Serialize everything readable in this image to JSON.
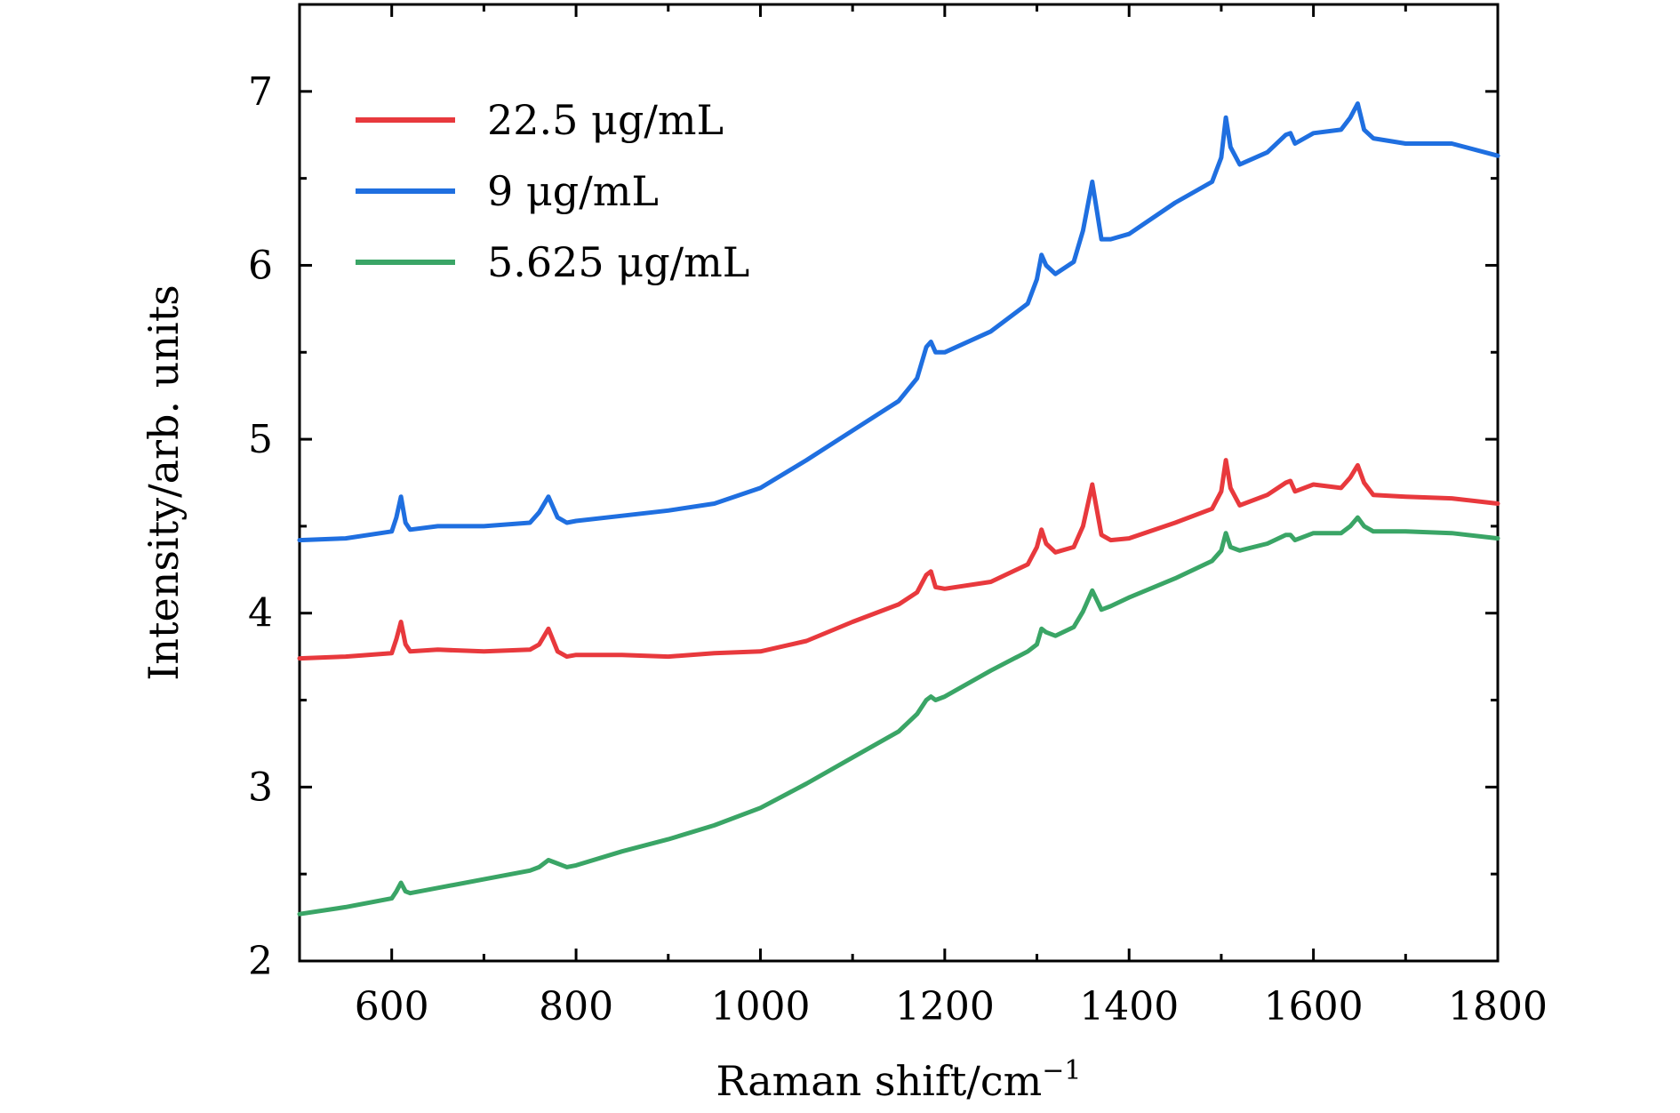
{
  "chart_data": {
    "type": "line",
    "xlabel": "Raman shift/cm",
    "xlabel_sup": "−1",
    "ylabel": "Intensity/arb. units",
    "xlim": [
      500,
      1800
    ],
    "ylim": [
      2,
      7.5
    ],
    "x_ticks": [
      600,
      800,
      1000,
      1200,
      1400,
      1600,
      1800
    ],
    "y_ticks": [
      2,
      3,
      4,
      5,
      6,
      7
    ],
    "grid": false,
    "legend": "top-left",
    "series": [
      {
        "name": "22.5 μg/mL",
        "color": "#e8393d",
        "x": [
          500,
          550,
          600,
          605,
          610,
          615,
          620,
          650,
          700,
          750,
          760,
          770,
          780,
          790,
          800,
          850,
          900,
          950,
          1000,
          1050,
          1100,
          1150,
          1170,
          1180,
          1185,
          1190,
          1200,
          1250,
          1290,
          1300,
          1305,
          1310,
          1320,
          1340,
          1350,
          1360,
          1370,
          1380,
          1400,
          1450,
          1490,
          1500,
          1505,
          1510,
          1520,
          1550,
          1570,
          1575,
          1580,
          1600,
          1630,
          1640,
          1648,
          1655,
          1665,
          1700,
          1750,
          1800
        ],
        "y": [
          3.74,
          3.75,
          3.77,
          3.85,
          3.95,
          3.82,
          3.78,
          3.79,
          3.78,
          3.79,
          3.82,
          3.91,
          3.78,
          3.75,
          3.76,
          3.76,
          3.75,
          3.77,
          3.78,
          3.84,
          3.95,
          4.05,
          4.12,
          4.22,
          4.24,
          4.15,
          4.14,
          4.18,
          4.28,
          4.38,
          4.48,
          4.4,
          4.35,
          4.38,
          4.5,
          4.74,
          4.45,
          4.42,
          4.43,
          4.52,
          4.6,
          4.7,
          4.88,
          4.72,
          4.62,
          4.68,
          4.75,
          4.76,
          4.7,
          4.74,
          4.72,
          4.78,
          4.85,
          4.75,
          4.68,
          4.67,
          4.66,
          4.63
        ]
      },
      {
        "name": "9 μg/mL",
        "color": "#1f6fe0",
        "x": [
          500,
          550,
          600,
          605,
          610,
          615,
          620,
          650,
          700,
          750,
          760,
          770,
          780,
          790,
          800,
          850,
          900,
          950,
          1000,
          1050,
          1100,
          1150,
          1170,
          1180,
          1185,
          1190,
          1200,
          1250,
          1290,
          1300,
          1305,
          1310,
          1320,
          1340,
          1350,
          1360,
          1370,
          1380,
          1400,
          1450,
          1490,
          1500,
          1505,
          1510,
          1520,
          1550,
          1570,
          1575,
          1580,
          1600,
          1630,
          1640,
          1648,
          1655,
          1665,
          1700,
          1750,
          1800
        ],
        "y": [
          4.42,
          4.43,
          4.47,
          4.55,
          4.67,
          4.52,
          4.48,
          4.5,
          4.5,
          4.52,
          4.58,
          4.67,
          4.55,
          4.52,
          4.53,
          4.56,
          4.59,
          4.63,
          4.72,
          4.88,
          5.05,
          5.22,
          5.35,
          5.53,
          5.56,
          5.5,
          5.5,
          5.62,
          5.78,
          5.92,
          6.06,
          6.0,
          5.95,
          6.02,
          6.2,
          6.48,
          6.15,
          6.15,
          6.18,
          6.36,
          6.48,
          6.62,
          6.85,
          6.68,
          6.58,
          6.65,
          6.75,
          6.76,
          6.7,
          6.76,
          6.78,
          6.85,
          6.93,
          6.78,
          6.73,
          6.7,
          6.7,
          6.63
        ]
      },
      {
        "name": "5.625 μg/mL",
        "color": "#3aa566",
        "x": [
          500,
          550,
          600,
          605,
          610,
          615,
          620,
          650,
          700,
          750,
          760,
          770,
          780,
          790,
          800,
          850,
          900,
          950,
          1000,
          1050,
          1100,
          1150,
          1170,
          1180,
          1185,
          1190,
          1200,
          1250,
          1290,
          1300,
          1305,
          1310,
          1320,
          1340,
          1350,
          1360,
          1370,
          1380,
          1400,
          1450,
          1490,
          1500,
          1505,
          1510,
          1520,
          1550,
          1570,
          1575,
          1580,
          1600,
          1630,
          1640,
          1648,
          1655,
          1665,
          1700,
          1750,
          1800
        ],
        "y": [
          2.27,
          2.31,
          2.36,
          2.4,
          2.45,
          2.4,
          2.39,
          2.42,
          2.47,
          2.52,
          2.54,
          2.58,
          2.56,
          2.54,
          2.55,
          2.63,
          2.7,
          2.78,
          2.88,
          3.02,
          3.17,
          3.32,
          3.42,
          3.5,
          3.52,
          3.5,
          3.52,
          3.67,
          3.78,
          3.82,
          3.91,
          3.89,
          3.87,
          3.92,
          4.01,
          4.13,
          4.02,
          4.04,
          4.09,
          4.2,
          4.3,
          4.36,
          4.46,
          4.38,
          4.36,
          4.4,
          4.45,
          4.45,
          4.42,
          4.46,
          4.46,
          4.5,
          4.55,
          4.5,
          4.47,
          4.47,
          4.46,
          4.43
        ]
      }
    ]
  }
}
